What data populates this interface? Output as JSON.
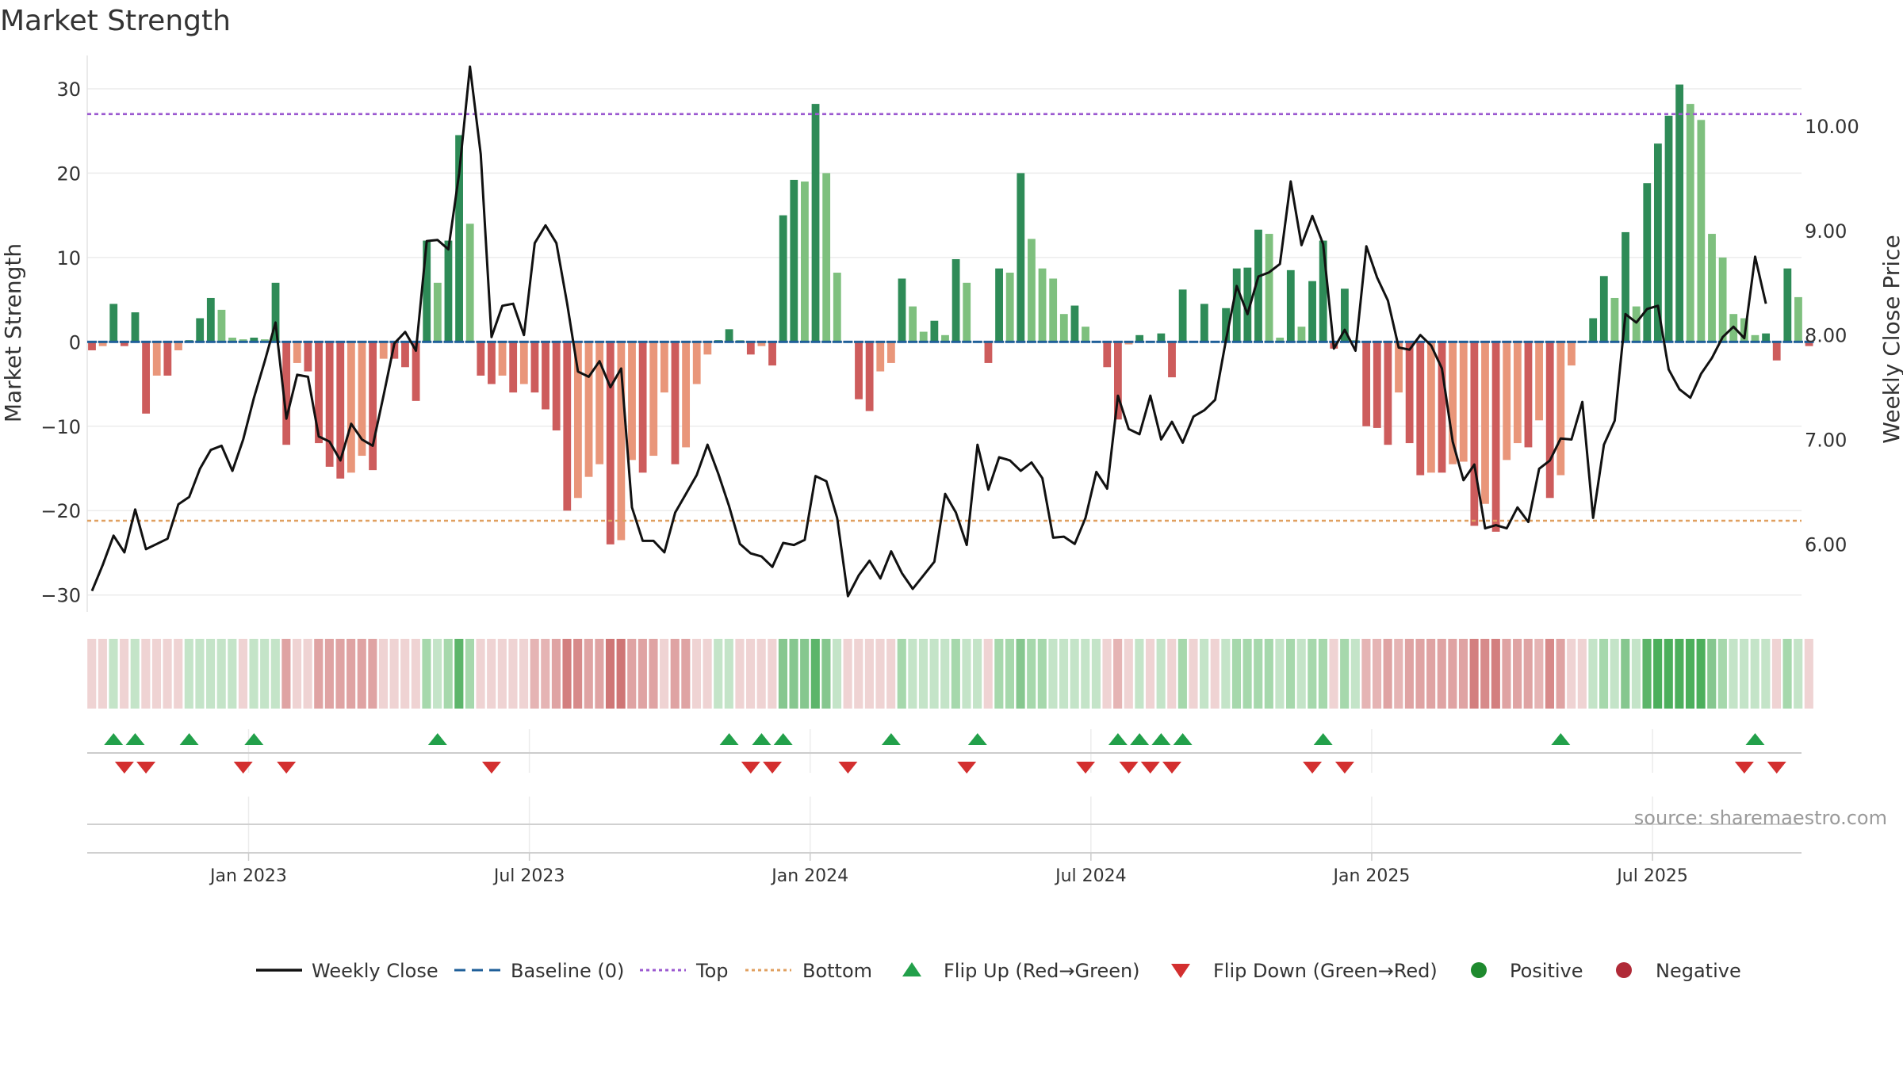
{
  "chart_data": {
    "type": "bar+line",
    "title": "Market Strength",
    "ylabel_left": "Market Strength",
    "ylabel_right": "Weekly Close Price",
    "ylim_left": [
      -32,
      33
    ],
    "ylim_right": [
      5.35,
      10.6
    ],
    "left_ticks": [
      30,
      20,
      10,
      0,
      -10,
      -20,
      -30
    ],
    "left_tick_labels": [
      "30",
      "20",
      "10",
      "0",
      "−10",
      "−20",
      "−30"
    ],
    "right_ticks": [
      10.0,
      9.0,
      8.0,
      7.0,
      6.0
    ],
    "right_tick_labels": [
      "10.00",
      "9.00",
      "8.00",
      "7.00",
      "6.00"
    ],
    "top_threshold": 27,
    "bottom_threshold": -21.2,
    "baseline": 0,
    "week_start_index": 0,
    "x_axis_labels": [
      "Jan 2023",
      "Jul 2023",
      "Jan 2024",
      "Jul 2024",
      "Jan 2025",
      "Jul 2025"
    ],
    "x_axis_label_week_index": [
      14.5,
      40.5,
      66.5,
      92.5,
      118.5,
      144.5
    ],
    "strength": [
      -1,
      -0.5,
      4.5,
      -0.5,
      3.5,
      -8.5,
      -4,
      -4,
      -1,
      0.2,
      2.8,
      5.2,
      3.8,
      0.5,
      0.3,
      0.5,
      0.3,
      7,
      -12.2,
      -2.5,
      -3.5,
      -12,
      -14.8,
      -16.2,
      -15.5,
      -13.5,
      -15.2,
      -2,
      -2,
      -3,
      -7,
      12,
      7,
      12,
      24.5,
      14,
      -4,
      -5,
      -4,
      -6,
      -5,
      -6,
      -8,
      -10.5,
      -20,
      -18.5,
      -16,
      -14.5,
      -24,
      -23.5,
      -14,
      -15.5,
      -13.5,
      -6,
      -14.5,
      -12.5,
      -5,
      -1.5,
      0.2,
      1.5,
      0.2,
      -1.5,
      -0.5,
      -2.8,
      15,
      19.2,
      19,
      28.2,
      20,
      8.2,
      0,
      -6.8,
      -8.2,
      -3.5,
      -2.5,
      7.5,
      4.2,
      1.2,
      2.5,
      0.8,
      9.8,
      7,
      0,
      -2.5,
      8.7,
      8.2,
      20,
      12.2,
      8.7,
      7.5,
      3.3,
      4.3,
      1.8,
      0,
      -3,
      -9.2,
      -0.3,
      0.8,
      0,
      1,
      -4.2,
      6.2,
      0,
      4.5,
      0,
      4,
      8.7,
      8.8,
      13.3,
      12.8,
      0.5,
      8.5,
      1.8,
      7.2,
      12,
      -0.8,
      6.3,
      0.2,
      -10,
      -10.2,
      -12.2,
      -6,
      -12,
      -15.8,
      -15.5,
      -15.5,
      -14.5,
      -14.2,
      -21.8,
      -19.2,
      -22.5,
      -14,
      -12,
      -12.5,
      -9.3,
      -18.5,
      -15.8,
      -2.8,
      0,
      2.8,
      7.8,
      5.2,
      13,
      4.2,
      18.8,
      23.5,
      26.8,
      30.5,
      28.2,
      26.3,
      12.8,
      10,
      3.3,
      2.8,
      0.8,
      1,
      -2.2,
      8.7,
      5.3,
      -0.5
    ],
    "weekly_close": [
      5.55,
      5.8,
      6.08,
      5.92,
      6.33,
      5.95,
      6.0,
      6.05,
      6.38,
      6.45,
      6.72,
      6.9,
      6.94,
      6.7,
      7.0,
      7.4,
      7.75,
      8.12,
      7.2,
      7.62,
      7.6,
      7.03,
      6.98,
      6.8,
      7.15,
      7.0,
      6.94,
      7.42,
      7.92,
      8.03,
      7.85,
      8.9,
      8.91,
      8.82,
      9.55,
      10.57,
      9.73,
      7.98,
      8.28,
      8.3,
      8.0,
      8.88,
      9.05,
      8.88,
      8.3,
      7.65,
      7.6,
      7.75,
      7.5,
      7.68,
      6.35,
      6.03,
      6.03,
      5.92,
      6.3,
      6.48,
      6.66,
      6.95,
      6.67,
      6.36,
      6.0,
      5.91,
      5.88,
      5.78,
      6.01,
      5.99,
      6.04,
      6.65,
      6.6,
      6.25,
      5.5,
      5.7,
      5.84,
      5.67,
      5.93,
      5.72,
      5.57,
      5.7,
      5.83,
      6.48,
      6.3,
      5.99,
      6.95,
      6.52,
      6.83,
      6.8,
      6.7,
      6.78,
      6.63,
      6.06,
      6.07,
      6.0,
      6.25,
      6.69,
      6.53,
      7.42,
      7.1,
      7.05,
      7.42,
      7.0,
      7.17,
      6.97,
      7.22,
      7.28,
      7.38,
      7.95,
      8.47,
      8.2,
      8.56,
      8.6,
      8.68,
      9.47,
      8.86,
      9.14,
      8.87,
      7.87,
      8.05,
      7.85,
      8.85,
      8.55,
      8.33,
      7.88,
      7.86,
      8.0,
      7.9,
      7.68,
      6.98,
      6.61,
      6.76,
      6.15,
      6.18,
      6.15,
      6.35,
      6.21,
      6.72,
      6.8,
      7.01,
      7.0,
      7.36,
      6.25,
      6.95,
      7.18,
      8.2,
      8.12,
      8.25,
      8.28,
      7.67,
      7.48,
      7.4,
      7.63,
      7.78,
      7.98,
      8.08,
      7.97,
      8.75,
      8.3
    ],
    "heat_colors": [
      "#efd3d3",
      "#efd3d3",
      "#c4e4c8",
      "#efd3d3",
      "#c4e4c8",
      "#efd3d3",
      "#efd3d3",
      "#efd3d3",
      "#efd3d3",
      "#c4e4c8",
      "#c4e4c8",
      "#c4e4c8",
      "#c4e4c8",
      "#c4e4c8",
      "#efd3d3",
      "#c4e4c8",
      "#c4e4c8",
      "#c4e4c8",
      "#dfa3a3",
      "#efd3d3",
      "#efd3d3",
      "#dfa3a3",
      "#dfa3a3",
      "#dfa3a3",
      "#dfa3a3",
      "#dfa3a3",
      "#dfa3a3",
      "#efd3d3",
      "#efd3d3",
      "#efd3d3",
      "#efd3d3",
      "#a6d8ac",
      "#c4e4c8",
      "#a6d8ac",
      "#5cb56a",
      "#a6d8ac",
      "#efd3d3",
      "#efd3d3",
      "#efd3d3",
      "#efd3d3",
      "#efd3d3",
      "#e5b4b4",
      "#e5b4b4",
      "#dfa3a3",
      "#d37f7f",
      "#d78a8a",
      "#dfa3a3",
      "#dfa3a3",
      "#cf7676",
      "#cf7676",
      "#dfa3a3",
      "#dfa3a3",
      "#dfa3a3",
      "#efd3d3",
      "#dfa3a3",
      "#dfa3a3",
      "#efd3d3",
      "#efd3d3",
      "#c4e4c8",
      "#c4e4c8",
      "#efd3d3",
      "#efd3d3",
      "#efd3d3",
      "#efd3d3",
      "#86c78f",
      "#86c78f",
      "#86c78f",
      "#5cb56a",
      "#86c78f",
      "#c4e4c8",
      "#efd3d3",
      "#efd3d3",
      "#efd3d3",
      "#efd3d3",
      "#efd3d3",
      "#a6d8ac",
      "#c4e4c8",
      "#c4e4c8",
      "#c4e4c8",
      "#c4e4c8",
      "#a6d8ac",
      "#c4e4c8",
      "#c4e4c8",
      "#efd3d3",
      "#a6d8ac",
      "#a6d8ac",
      "#86c78f",
      "#a6d8ac",
      "#a6d8ac",
      "#c4e4c8",
      "#c4e4c8",
      "#c4e4c8",
      "#c4e4c8",
      "#c4e4c8",
      "#efd3d3",
      "#e5b4b4",
      "#efd3d3",
      "#c4e4c8",
      "#efd3d3",
      "#c4e4c8",
      "#efd3d3",
      "#a6d8ac",
      "#efd3d3",
      "#c4e4c8",
      "#efd3d3",
      "#c4e4c8",
      "#a6d8ac",
      "#a6d8ac",
      "#a6d8ac",
      "#a6d8ac",
      "#c4e4c8",
      "#a6d8ac",
      "#c4e4c8",
      "#a6d8ac",
      "#a6d8ac",
      "#efd3d3",
      "#a6d8ac",
      "#c4e4c8",
      "#e5b4b4",
      "#e5b4b4",
      "#dfa3a3",
      "#e5b4b4",
      "#dfa3a3",
      "#dfa3a3",
      "#dfa3a3",
      "#dfa3a3",
      "#dfa3a3",
      "#dfa3a3",
      "#d37f7f",
      "#d78a8a",
      "#d37f7f",
      "#dfa3a3",
      "#dfa3a3",
      "#dfa3a3",
      "#e5b4b4",
      "#d78a8a",
      "#dfa3a3",
      "#efd3d3",
      "#efd3d3",
      "#c4e4c8",
      "#a6d8ac",
      "#c4e4c8",
      "#86c78f",
      "#c4e4c8",
      "#5cb56a",
      "#4caf5c",
      "#4caf5c",
      "#4caf5c",
      "#4caf5c",
      "#4caf5c",
      "#86c78f",
      "#a6d8ac",
      "#c4e4c8",
      "#c4e4c8",
      "#c4e4c8",
      "#c4e4c8",
      "#efd3d3",
      "#a6d8ac",
      "#c4e4c8",
      "#efd3d3"
    ],
    "flip_up_week_index": [
      2,
      4,
      9,
      15,
      32,
      59,
      62,
      64,
      74,
      82,
      95,
      97,
      99,
      101,
      114,
      136,
      154
    ],
    "flip_down_week_index": [
      3,
      5,
      14,
      18,
      37,
      61,
      63,
      70,
      81,
      92,
      96,
      98,
      100,
      113,
      116,
      153,
      156
    ],
    "series": [
      {
        "name": "Weekly Close",
        "style": "line",
        "color": "#111111"
      },
      {
        "name": "Baseline (0)",
        "style": "dashed",
        "color": "#1f5f99"
      },
      {
        "name": "Top",
        "style": "dotted",
        "color": "#9b59d0"
      },
      {
        "name": "Bottom",
        "style": "dotted",
        "color": "#e0a060"
      },
      {
        "name": "Flip Up (Red→Green)",
        "style": "marker-up",
        "color": "#22a04a"
      },
      {
        "name": "Flip Down (Green→Red)",
        "style": "marker-down",
        "color": "#d32f2f"
      },
      {
        "name": "Positive",
        "style": "marker-circle",
        "color": "#1e8a2e"
      },
      {
        "name": "Negative",
        "style": "marker-circle",
        "color": "#b02a37"
      }
    ],
    "bar_colors": {
      "positive_strong": "#2e8b57",
      "positive_weak": "#7ec07e",
      "negative_strong": "#cd5c5c",
      "negative_weak": "#e9967a"
    },
    "source_label": "source: sharemaestro.com"
  }
}
